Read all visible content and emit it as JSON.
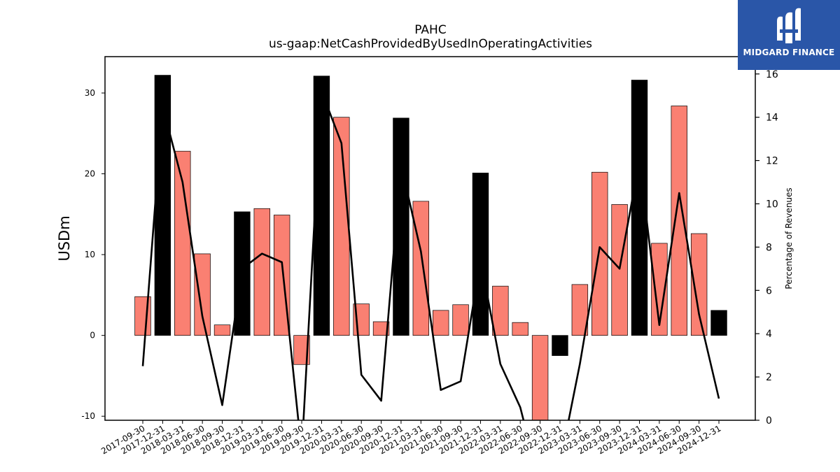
{
  "chart_data": {
    "type": "bar",
    "title": "PAHC",
    "subtitle": "us-gaap:NetCashProvidedByUsedInOperatingActivities",
    "ylabel": "USDm",
    "y2label": "Percentage of Revenues",
    "ylim": [
      -10.5,
      34.5
    ],
    "y2lim": [
      0,
      16.8
    ],
    "yticks": [
      -10,
      0,
      10,
      20,
      30
    ],
    "y2ticks": [
      0,
      2,
      4,
      6,
      8,
      10,
      12,
      14,
      16
    ],
    "categories": [
      "2017-09-30",
      "2017-12-31",
      "2018-03-31",
      "2018-06-30",
      "2018-09-30",
      "2018-12-31",
      "2019-03-31",
      "2019-06-30",
      "2019-09-30",
      "2019-12-31",
      "2020-03-31",
      "2020-06-30",
      "2020-09-30",
      "2020-12-31",
      "2021-03-31",
      "2021-06-30",
      "2021-09-30",
      "2021-12-31",
      "2022-03-31",
      "2022-06-30",
      "2022-09-30",
      "2022-12-31",
      "2023-03-31",
      "2023-06-30",
      "2023-09-30",
      "2023-12-31",
      "2024-03-31",
      "2024-06-30",
      "2024-09-30",
      "2024-12-31"
    ],
    "series": [
      {
        "kind": "bar",
        "values": [
          4.8,
          32.2,
          22.8,
          10.1,
          1.3,
          15.3,
          15.7,
          14.9,
          -3.6,
          32.1,
          27.0,
          3.9,
          1.7,
          26.9,
          16.6,
          3.1,
          3.8,
          20.1,
          6.1,
          1.6,
          -11.0,
          -2.5,
          6.3,
          20.2,
          16.2,
          31.6,
          11.4,
          28.4,
          12.6,
          3.1
        ],
        "colors": [
          "#fa8072",
          "#000000",
          "#fa8072",
          "#fa8072",
          "#fa8072",
          "#000000",
          "#fa8072",
          "#fa8072",
          "#fa8072",
          "#000000",
          "#fa8072",
          "#fa8072",
          "#fa8072",
          "#000000",
          "#fa8072",
          "#fa8072",
          "#fa8072",
          "#000000",
          "#fa8072",
          "#fa8072",
          "#fa8072",
          "#000000",
          "#fa8072",
          "#fa8072",
          "#fa8072",
          "#000000",
          "#fa8072",
          "#fa8072",
          "#fa8072",
          "#000000"
        ]
      },
      {
        "kind": "line",
        "axis": "y2",
        "color": "#000000",
        "values": [
          2.5,
          14.5,
          11.0,
          4.8,
          0.7,
          7.0,
          7.7,
          7.3,
          -1.5,
          15.2,
          12.8,
          2.1,
          0.9,
          11.8,
          7.8,
          1.4,
          1.8,
          7.4,
          2.6,
          0.6,
          -3.0,
          -2.0,
          2.6,
          8.0,
          7.0,
          12.0,
          4.4,
          10.5,
          4.9,
          1.0
        ]
      }
    ]
  },
  "logo": {
    "text": "MIDGARD FINANCE"
  }
}
